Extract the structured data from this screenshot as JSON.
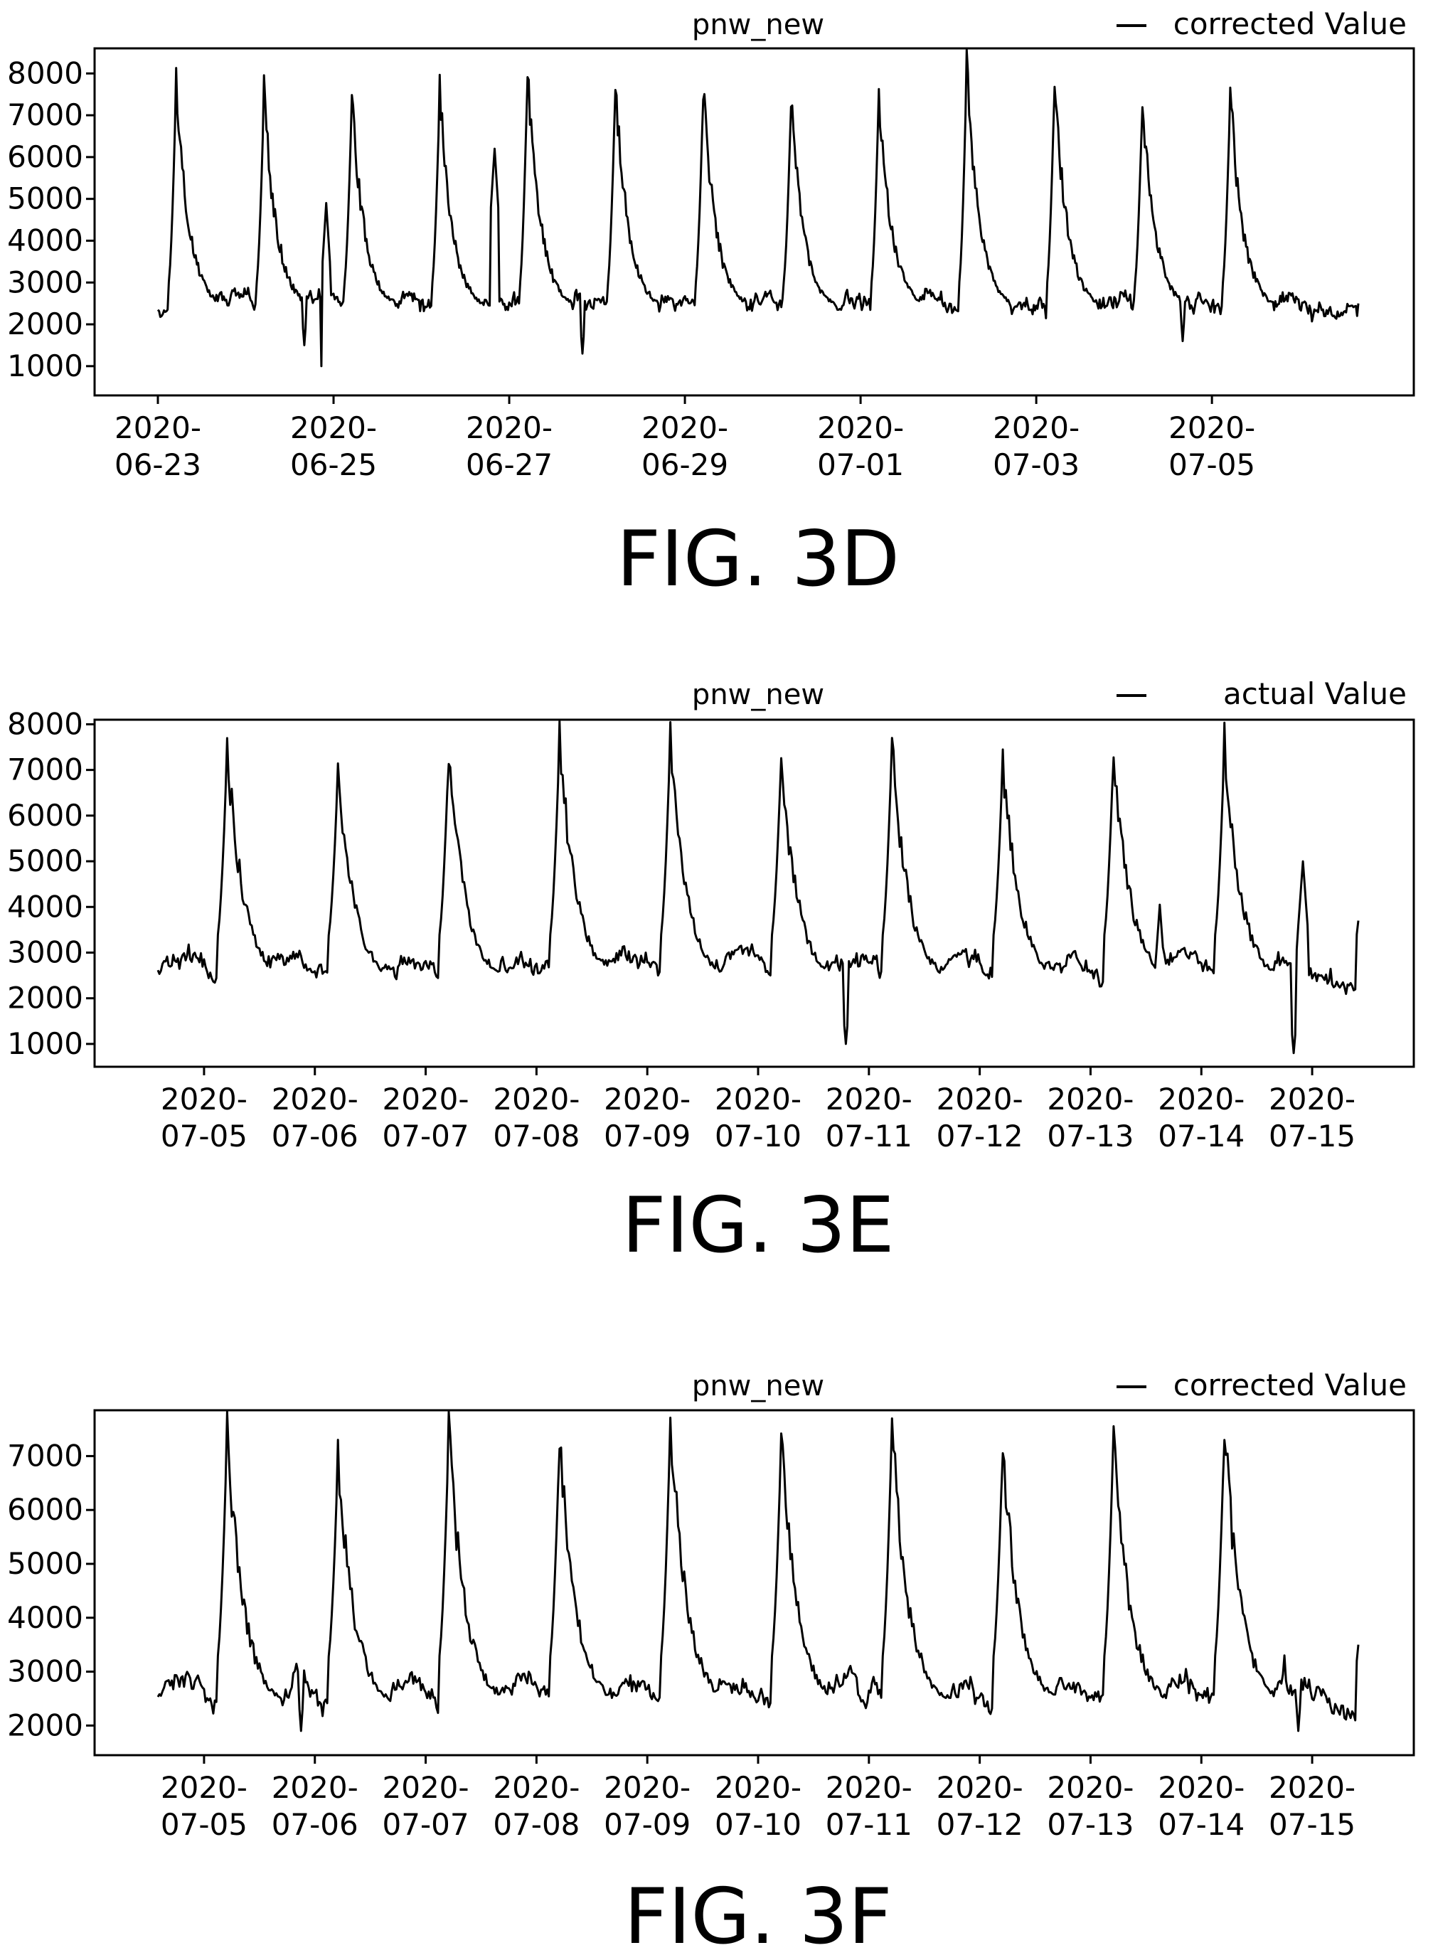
{
  "figures": [
    {
      "caption": "FIG. 3D"
    },
    {
      "caption": "FIG. 3E"
    },
    {
      "caption": "FIG. 3F"
    }
  ],
  "chart_data": [
    {
      "type": "line",
      "title": "pnw_new",
      "legend": "top-right",
      "series": [
        {
          "name": "corrected Value",
          "color": "#000000"
        }
      ],
      "xlim": [
        "2020-06-23",
        "2020-07-06T16:00"
      ],
      "ylim": [
        300,
        8600
      ],
      "yticks": [
        1000,
        2000,
        3000,
        4000,
        5000,
        6000,
        7000,
        8000
      ],
      "xticks": [
        {
          "x": "2020-06-23",
          "line1": "2020-",
          "line2": "06-23"
        },
        {
          "x": "2020-06-25",
          "line1": "2020-",
          "line2": "06-25"
        },
        {
          "x": "2020-06-27",
          "line1": "2020-",
          "line2": "06-27"
        },
        {
          "x": "2020-06-29",
          "line1": "2020-",
          "line2": "06-29"
        },
        {
          "x": "2020-07-01",
          "line1": "2020-",
          "line2": "07-01"
        },
        {
          "x": "2020-07-03",
          "line1": "2020-",
          "line2": "07-03"
        },
        {
          "x": "2020-07-05",
          "line1": "2020-",
          "line2": "07-05"
        }
      ],
      "daily_peaks": [
        {
          "x": "2020-06-23T05:00",
          "y": 7850
        },
        {
          "x": "2020-06-24T05:00",
          "y": 7550
        },
        {
          "x": "2020-06-25T05:00",
          "y": 7400
        },
        {
          "x": "2020-06-26T05:00",
          "y": 7600
        },
        {
          "x": "2020-06-27T05:00",
          "y": 8050
        },
        {
          "x": "2020-06-28T05:00",
          "y": 7800
        },
        {
          "x": "2020-06-29T05:00",
          "y": 7600
        },
        {
          "x": "2020-06-30T05:00",
          "y": 7350
        },
        {
          "x": "2020-07-01T05:00",
          "y": 7600
        },
        {
          "x": "2020-07-02T05:00",
          "y": 8200
        },
        {
          "x": "2020-07-03T05:00",
          "y": 7800
        },
        {
          "x": "2020-07-04T05:00",
          "y": 7400
        },
        {
          "x": "2020-07-05T05:00",
          "y": 7550
        }
      ],
      "dips": [
        {
          "x": "2020-06-24T21:00",
          "y": 600
        },
        {
          "x": "2020-06-24T16:00",
          "y": 1500
        },
        {
          "x": "2020-06-27T20:00",
          "y": 1300
        },
        {
          "x": "2020-07-04T16:00",
          "y": 1600
        }
      ],
      "spikes": [
        {
          "x": "2020-06-24T22:00",
          "y": 4900
        },
        {
          "x": "2020-06-26T20:00",
          "y": 6200
        }
      ],
      "baseline": {
        "low": 2000,
        "high": 2900
      },
      "end_value": 2500
    },
    {
      "type": "line",
      "title": "pnw_new",
      "legend": "top-right",
      "series": [
        {
          "name": "actual Value",
          "color": "#000000"
        }
      ],
      "xlim": [
        "2020-07-04T14:00",
        "2020-07-15T10:00"
      ],
      "ylim": [
        500,
        8100
      ],
      "yticks": [
        1000,
        2000,
        3000,
        4000,
        5000,
        6000,
        7000,
        8000
      ],
      "xticks": [
        {
          "x": "2020-07-05",
          "line1": "2020-",
          "line2": "07-05"
        },
        {
          "x": "2020-07-06",
          "line1": "2020-",
          "line2": "07-06"
        },
        {
          "x": "2020-07-07",
          "line1": "2020-",
          "line2": "07-07"
        },
        {
          "x": "2020-07-08",
          "line1": "2020-",
          "line2": "07-08"
        },
        {
          "x": "2020-07-09",
          "line1": "2020-",
          "line2": "07-09"
        },
        {
          "x": "2020-07-10",
          "line1": "2020-",
          "line2": "07-10"
        },
        {
          "x": "2020-07-11",
          "line1": "2020-",
          "line2": "07-11"
        },
        {
          "x": "2020-07-12",
          "line1": "2020-",
          "line2": "07-12"
        },
        {
          "x": "2020-07-13",
          "line1": "2020-",
          "line2": "07-13"
        },
        {
          "x": "2020-07-14",
          "line1": "2020-",
          "line2": "07-14"
        },
        {
          "x": "2020-07-15",
          "line1": "2020-",
          "line2": "07-15"
        }
      ],
      "daily_peaks": [
        {
          "x": "2020-07-05T05:00",
          "y": 7500
        },
        {
          "x": "2020-07-06T05:00",
          "y": 7000
        },
        {
          "x": "2020-07-07T05:00",
          "y": 7500
        },
        {
          "x": "2020-07-08T05:00",
          "y": 7750
        },
        {
          "x": "2020-07-09T05:00",
          "y": 7800
        },
        {
          "x": "2020-07-10T05:00",
          "y": 7300
        },
        {
          "x": "2020-07-11T05:00",
          "y": 7600
        },
        {
          "x": "2020-07-12T05:00",
          "y": 7250
        },
        {
          "x": "2020-07-13T05:00",
          "y": 7500
        },
        {
          "x": "2020-07-14T05:00",
          "y": 7600
        }
      ],
      "dips": [
        {
          "x": "2020-07-10T19:00",
          "y": 1000
        },
        {
          "x": "2020-07-14T20:00",
          "y": 800
        }
      ],
      "spikes": [
        {
          "x": "2020-07-13T15:00",
          "y": 4050
        },
        {
          "x": "2020-07-14T22:00",
          "y": 5000
        }
      ],
      "baseline": {
        "low": 2000,
        "high": 3300
      },
      "end_value": 3700
    },
    {
      "type": "line",
      "title": "pnw_new",
      "legend": "top-right",
      "series": [
        {
          "name": "corrected Value",
          "color": "#000000"
        }
      ],
      "xlim": [
        "2020-07-04T14:00",
        "2020-07-15T10:00"
      ],
      "ylim": [
        1450,
        7850
      ],
      "yticks": [
        2000,
        3000,
        4000,
        5000,
        6000,
        7000
      ],
      "xticks": [
        {
          "x": "2020-07-05",
          "line1": "2020-",
          "line2": "07-05"
        },
        {
          "x": "2020-07-06",
          "line1": "2020-",
          "line2": "07-06"
        },
        {
          "x": "2020-07-07",
          "line1": "2020-",
          "line2": "07-07"
        },
        {
          "x": "2020-07-08",
          "line1": "2020-",
          "line2": "07-08"
        },
        {
          "x": "2020-07-09",
          "line1": "2020-",
          "line2": "07-09"
        },
        {
          "x": "2020-07-10",
          "line1": "2020-",
          "line2": "07-10"
        },
        {
          "x": "2020-07-11",
          "line1": "2020-",
          "line2": "07-11"
        },
        {
          "x": "2020-07-12",
          "line1": "2020-",
          "line2": "07-12"
        },
        {
          "x": "2020-07-13",
          "line1": "2020-",
          "line2": "07-13"
        },
        {
          "x": "2020-07-14",
          "line1": "2020-",
          "line2": "07-14"
        },
        {
          "x": "2020-07-15",
          "line1": "2020-",
          "line2": "07-15"
        }
      ],
      "daily_peaks": [
        {
          "x": "2020-07-05T05:00",
          "y": 7500
        },
        {
          "x": "2020-07-06T05:00",
          "y": 7000
        },
        {
          "x": "2020-07-07T05:00",
          "y": 7500
        },
        {
          "x": "2020-07-08T05:00",
          "y": 7400
        },
        {
          "x": "2020-07-09T05:00",
          "y": 7650
        },
        {
          "x": "2020-07-10T05:00",
          "y": 7300
        },
        {
          "x": "2020-07-11T05:00",
          "y": 7600
        },
        {
          "x": "2020-07-12T05:00",
          "y": 7250
        },
        {
          "x": "2020-07-13T05:00",
          "y": 7500
        },
        {
          "x": "2020-07-14T05:00",
          "y": 7550
        }
      ],
      "dips": [
        {
          "x": "2020-07-05T21:00",
          "y": 1900
        },
        {
          "x": "2020-07-14T21:00",
          "y": 1900
        }
      ],
      "spikes": [
        {
          "x": "2020-07-14T18:00",
          "y": 3300
        }
      ],
      "baseline": {
        "low": 2000,
        "high": 3200
      },
      "end_value": 3500
    }
  ]
}
